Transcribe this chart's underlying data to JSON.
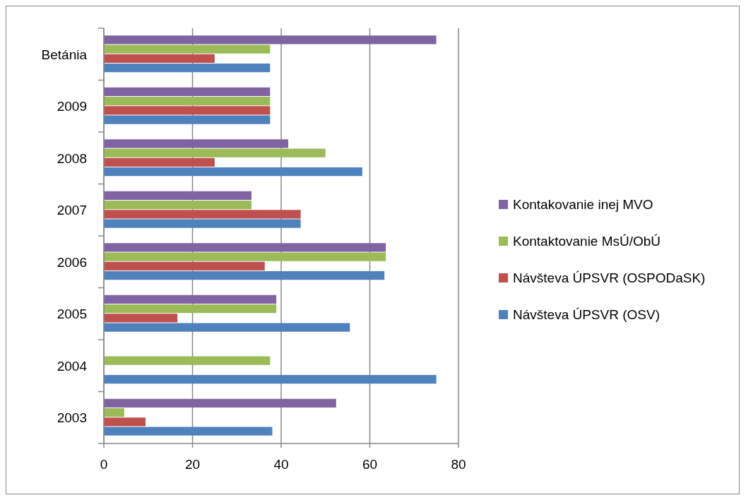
{
  "chart_data": {
    "type": "bar",
    "orientation": "horizontal",
    "categories": [
      "Betánia",
      "2009",
      "2008",
      "2007",
      "2006",
      "2005",
      "2004",
      "2003"
    ],
    "series": [
      {
        "name": "Kontakovanie inej MVO",
        "color": "#8064a2",
        "values": [
          75,
          37.5,
          41.6,
          33.3,
          63.6,
          38.9,
          0,
          52.4
        ]
      },
      {
        "name": "Kontaktovanie MsÚ/ObÚ",
        "color": "#9bbb59",
        "values": [
          37.5,
          37.5,
          50,
          33.3,
          63.6,
          38.9,
          37.5,
          4.6
        ]
      },
      {
        "name": "Návšteva ÚPSVR (OSPODaSK)",
        "color": "#c0504d",
        "values": [
          25,
          37.5,
          25,
          44.4,
          36.3,
          16.6,
          0,
          9.4
        ]
      },
      {
        "name": "Návšteva ÚPSVR (OSV)",
        "color": "#4f81bd",
        "values": [
          37.5,
          37.5,
          58.3,
          44.4,
          63.3,
          55.5,
          75,
          38
        ]
      }
    ],
    "xlim": [
      0,
      80
    ],
    "xticks": [
      0,
      20,
      40,
      60,
      80
    ],
    "grid": "x",
    "legend": "right"
  }
}
